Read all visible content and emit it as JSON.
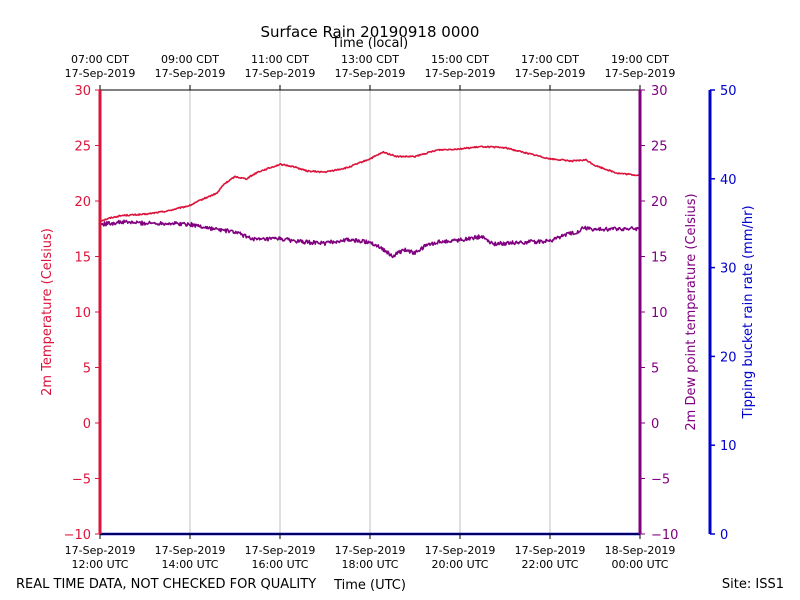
{
  "chart_data": {
    "type": "line",
    "title": "Surface Rain 20190918 0000",
    "top_axis_label": "Time (local)",
    "xlabel": "Time (UTC)",
    "ylabel_left": "2m Temperature (Celsius)",
    "ylabel_right": "2m Dew point temperature (Celsius)",
    "ylabel_far_right": "Tipping bucket rain rate (mm/hr)",
    "footer_left": "REAL TIME DATA, NOT CHECKED FOR QUALITY",
    "footer_right": "Site: ISS1",
    "xlim_hours_utc": [
      12,
      24
    ],
    "ylim_temperature": [
      -10,
      30
    ],
    "ylim_rain": [
      0,
      50
    ],
    "y_ticks_temperature": [
      "30",
      "25",
      "20",
      "15",
      "10",
      "5",
      "0",
      "−5",
      "−10"
    ],
    "y_ticks_rain": [
      "50",
      "40",
      "30",
      "20",
      "10",
      "0"
    ],
    "x_ticks_utc": [
      {
        "hour": 12,
        "line1": "17-Sep-2019",
        "line2": "12:00 UTC"
      },
      {
        "hour": 14,
        "line1": "17-Sep-2019",
        "line2": "14:00 UTC"
      },
      {
        "hour": 16,
        "line1": "17-Sep-2019",
        "line2": "16:00 UTC"
      },
      {
        "hour": 18,
        "line1": "17-Sep-2019",
        "line2": "18:00 UTC"
      },
      {
        "hour": 20,
        "line1": "17-Sep-2019",
        "line2": "20:00 UTC"
      },
      {
        "hour": 22,
        "line1": "17-Sep-2019",
        "line2": "22:00 UTC"
      },
      {
        "hour": 24,
        "line1": "18-Sep-2019",
        "line2": "00:00 UTC"
      }
    ],
    "x_ticks_local": [
      {
        "hour": 12,
        "line1": "07:00 CDT",
        "line2": "17-Sep-2019"
      },
      {
        "hour": 14,
        "line1": "09:00 CDT",
        "line2": "17-Sep-2019"
      },
      {
        "hour": 16,
        "line1": "11:00 CDT",
        "line2": "17-Sep-2019"
      },
      {
        "hour": 18,
        "line1": "13:00 CDT",
        "line2": "17-Sep-2019"
      },
      {
        "hour": 20,
        "line1": "15:00 CDT",
        "line2": "17-Sep-2019"
      },
      {
        "hour": 22,
        "line1": "17:00 CDT",
        "line2": "17-Sep-2019"
      },
      {
        "hour": 24,
        "line1": "19:00 CDT",
        "line2": "17-Sep-2019"
      }
    ],
    "series": [
      {
        "name": "2m Temperature",
        "color": "#dc143c",
        "x": [
          12.0,
          12.25,
          12.5,
          13.0,
          13.5,
          14.0,
          14.3,
          14.6,
          14.75,
          15.0,
          15.25,
          15.5,
          16.0,
          16.3,
          16.6,
          17.0,
          17.5,
          18.0,
          18.3,
          18.6,
          19.0,
          19.5,
          20.0,
          20.5,
          21.0,
          21.5,
          22.0,
          22.5,
          22.8,
          23.0,
          23.5,
          24.0
        ],
        "values": [
          18.2,
          18.5,
          18.7,
          18.8,
          19.1,
          19.6,
          20.2,
          20.7,
          21.5,
          22.2,
          22.0,
          22.6,
          23.3,
          23.1,
          22.7,
          22.6,
          23.0,
          23.8,
          24.4,
          24.0,
          24.0,
          24.6,
          24.7,
          24.9,
          24.8,
          24.3,
          23.8,
          23.6,
          23.7,
          23.2,
          22.5,
          22.3
        ]
      },
      {
        "name": "2m Dew point temperature",
        "color": "#800080",
        "x": [
          12.0,
          12.5,
          13.0,
          13.5,
          14.0,
          14.5,
          15.0,
          15.25,
          15.5,
          16.0,
          16.5,
          17.0,
          17.5,
          18.0,
          18.25,
          18.5,
          18.75,
          19.0,
          19.25,
          19.5,
          20.0,
          20.5,
          20.75,
          21.0,
          21.5,
          22.0,
          22.3,
          22.6,
          22.75,
          23.0,
          23.5,
          24.0
        ],
        "values": [
          17.9,
          18.1,
          18.0,
          18.0,
          17.9,
          17.5,
          17.2,
          16.8,
          16.5,
          16.6,
          16.3,
          16.2,
          16.5,
          16.3,
          15.8,
          15.0,
          15.6,
          15.3,
          16.0,
          16.3,
          16.5,
          16.8,
          16.1,
          16.2,
          16.3,
          16.4,
          16.9,
          17.2,
          17.6,
          17.4,
          17.5,
          17.5
        ]
      },
      {
        "name": "Tipping bucket rain rate",
        "color": "#0000cd",
        "x": [
          12.0,
          24.0
        ],
        "values": [
          0,
          0
        ]
      }
    ]
  }
}
